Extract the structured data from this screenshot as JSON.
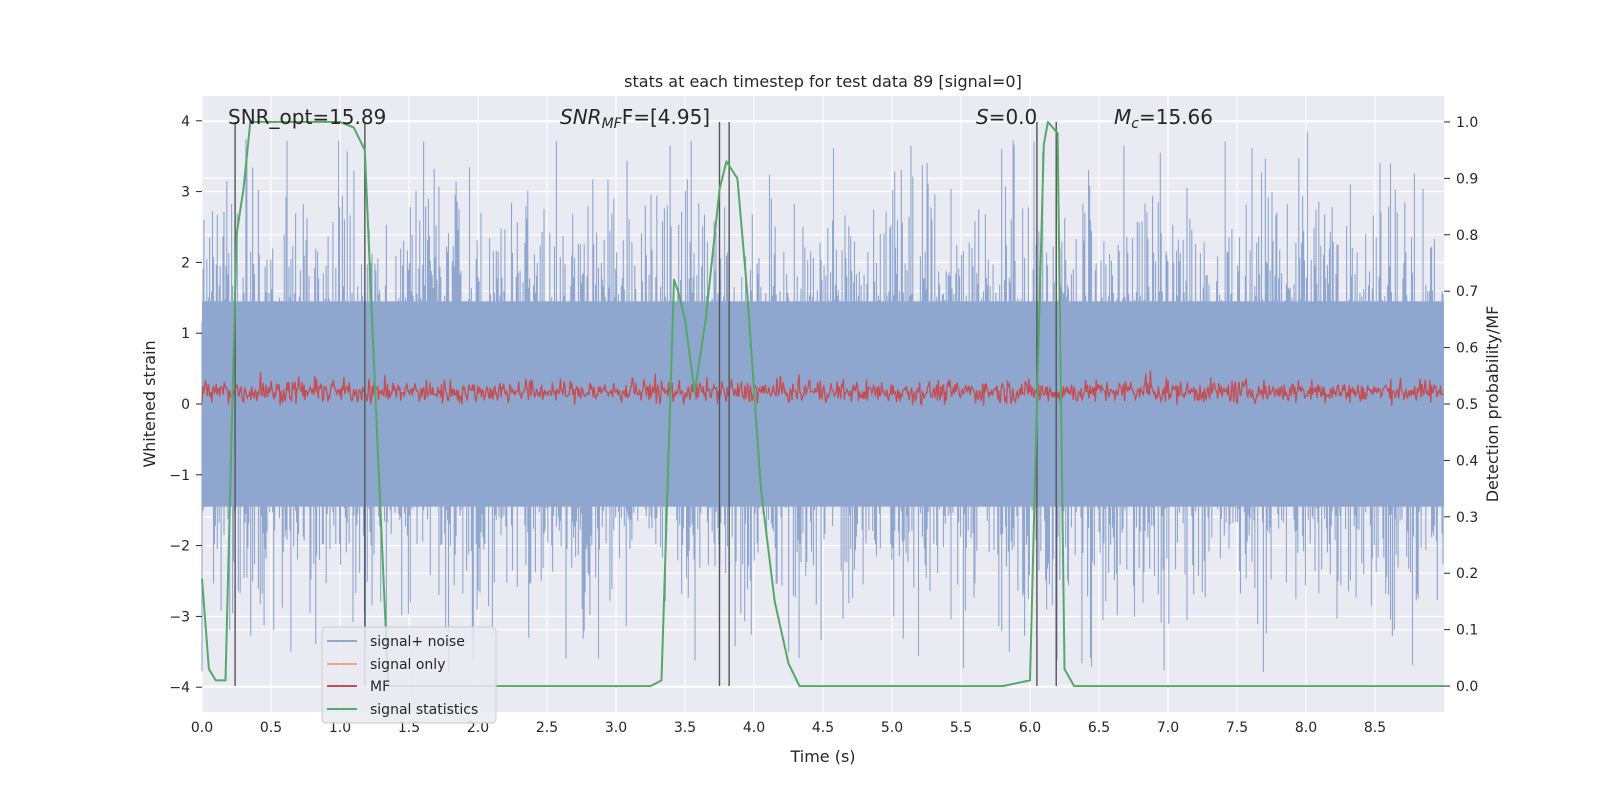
{
  "chart_data": {
    "type": "line",
    "title": "stats at each timestep for test data 89 [signal=0]",
    "xlabel": "Time (s)",
    "ylabel_left": "Whitened strain",
    "ylabel_right": "Detection probability/MF",
    "xlim": [
      0,
      9.0
    ],
    "ylim_left": [
      -4.35,
      4.35
    ],
    "ylim_right": [
      -0.046,
      1.046
    ],
    "grid": true,
    "legend_position": "lower-left",
    "x_ticks": [
      "0.0",
      "0.5",
      "1.0",
      "1.5",
      "2.0",
      "2.5",
      "3.0",
      "3.5",
      "4.0",
      "4.5",
      "5.0",
      "5.5",
      "6.0",
      "6.5",
      "7.0",
      "7.5",
      "8.0",
      "8.5"
    ],
    "y_ticks_left": [
      "4",
      "3",
      "2",
      "1",
      "0",
      "−1",
      "−2",
      "−3",
      "−4"
    ],
    "y_ticks_right": [
      "1.0",
      "0.9",
      "0.8",
      "0.7",
      "0.6",
      "0.5",
      "0.4",
      "0.3",
      "0.2",
      "0.1",
      "0.0"
    ],
    "annotations": {
      "snr_opt": "SNR_opt=15.89",
      "snr_mf_main": "SNR",
      "snr_mf_sub": "MF",
      "snr_mf_val": "F=[4.95]",
      "s_main": "S",
      "s_val": "=0.0",
      "mc_main": "M",
      "mc_sub": "c",
      "mc_val": "=15.66"
    },
    "colors": {
      "axes_bg": "#eaeaf2",
      "grid": "#ffffff",
      "signal_noise": "#8fa6cf",
      "signal_only": "#eea989",
      "mf": "#c44e52",
      "signal_statistics": "#55a868",
      "vlines": "#555555"
    },
    "series": [
      {
        "name": "signal+ noise",
        "style": "dense noise band, approx amplitude 1.5, spikes to ±3.8",
        "values_note": "noise"
      },
      {
        "name": "signal only",
        "values_note": "flat (no signal)"
      },
      {
        "name": "MF",
        "values_note": "noise around 0.5 on right axis, range 0.5–0.55"
      },
      {
        "name": "signal statistics",
        "x": [
          0.0,
          0.05,
          0.1,
          0.17,
          0.25,
          0.3,
          0.35,
          0.5,
          1.0,
          1.1,
          1.18,
          1.25,
          1.35,
          1.5,
          2.0,
          3.0,
          3.25,
          3.33,
          3.42,
          3.45,
          3.5,
          3.57,
          3.65,
          3.75,
          3.8,
          3.88,
          3.95,
          4.05,
          4.15,
          4.25,
          4.33,
          5.0,
          5.8,
          6.0,
          6.05,
          6.1,
          6.13,
          6.2,
          6.25,
          6.32,
          7.0,
          8.0,
          9.0
        ],
        "y": [
          0.19,
          0.03,
          0.01,
          0.01,
          0.8,
          0.88,
          1.0,
          1.0,
          1.0,
          0.99,
          0.95,
          0.55,
          0.0,
          0.0,
          0.0,
          0.0,
          0.0,
          0.01,
          0.72,
          0.7,
          0.65,
          0.52,
          0.65,
          0.88,
          0.93,
          0.9,
          0.7,
          0.35,
          0.15,
          0.04,
          0.0,
          0.0,
          0.0,
          0.01,
          0.5,
          0.96,
          1.0,
          0.98,
          0.03,
          0.0,
          0.0,
          0.0,
          0.0
        ]
      }
    ],
    "vlines_x": [
      0.24,
      1.18,
      3.75,
      3.82,
      6.05,
      6.19
    ]
  }
}
